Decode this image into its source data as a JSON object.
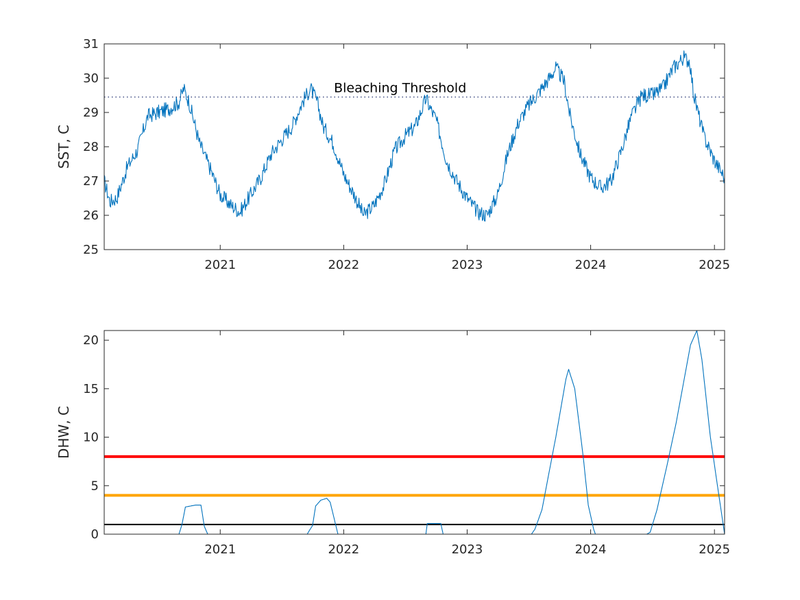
{
  "colors": {
    "series": "#0072BD",
    "red_line": "#FF0000",
    "orange_line": "#FFA500",
    "black_line": "#000000",
    "threshold_line": "#1F2E6E",
    "axis": "#262626"
  },
  "chart_data": [
    {
      "type": "line",
      "title": "",
      "xlabel": "",
      "ylabel": "SST, C",
      "xlim": [
        "2020-01-24",
        "2025-01-31"
      ],
      "ylim": [
        25,
        31
      ],
      "x_ticks": [
        "2021",
        "2022",
        "2023",
        "2024",
        "2025"
      ],
      "y_ticks": [
        "25",
        "26",
        "27",
        "28",
        "29",
        "30",
        "31"
      ],
      "grid": false,
      "annotations": [
        {
          "text": "Bleaching Threshold",
          "at_x": "2022-07-01"
        }
      ],
      "reference_lines": [
        {
          "y": 29.45,
          "style": "dotted"
        }
      ],
      "series": [
        {
          "x": [
            "2020-01-24",
            "2020-02-10",
            "2020-03-01",
            "2020-04-01",
            "2020-05-01",
            "2020-06-01",
            "2020-07-01",
            "2020-08-01",
            "2020-09-01",
            "2020-09-15",
            "2020-10-01",
            "2020-11-01",
            "2020-12-01",
            "2021-01-01",
            "2021-02-01",
            "2021-03-01",
            "2021-04-01",
            "2021-05-01",
            "2021-06-01",
            "2021-07-01",
            "2021-08-01",
            "2021-09-01",
            "2021-09-25",
            "2021-10-15",
            "2021-11-01",
            "2021-12-01",
            "2022-01-01",
            "2022-02-01",
            "2022-03-01",
            "2022-04-01",
            "2022-05-01",
            "2022-06-01",
            "2022-07-01",
            "2022-08-01",
            "2022-09-01",
            "2022-09-15",
            "2022-10-01",
            "2022-11-01",
            "2022-12-01",
            "2023-01-01",
            "2023-02-01",
            "2023-03-01",
            "2023-04-01",
            "2023-05-01",
            "2023-06-01",
            "2023-07-01",
            "2023-08-01",
            "2023-09-01",
            "2023-09-20",
            "2023-10-15",
            "2023-11-01",
            "2023-12-01",
            "2024-01-01",
            "2024-02-01",
            "2024-03-01",
            "2024-04-01",
            "2024-05-01",
            "2024-06-01",
            "2024-07-01",
            "2024-08-01",
            "2024-09-01",
            "2024-10-01",
            "2024-10-20",
            "2024-11-01",
            "2024-12-01",
            "2025-01-01",
            "2025-01-31"
          ],
          "y": [
            27.0,
            26.4,
            26.5,
            27.4,
            27.9,
            28.9,
            29.0,
            29.1,
            29.3,
            29.7,
            29.3,
            28.1,
            27.4,
            26.6,
            26.3,
            26.1,
            26.6,
            27.1,
            27.8,
            28.2,
            28.6,
            29.3,
            29.7,
            29.3,
            28.6,
            28.1,
            27.2,
            26.6,
            26.0,
            26.3,
            26.9,
            27.9,
            28.3,
            28.6,
            29.4,
            29.1,
            28.8,
            27.6,
            27.0,
            26.5,
            26.1,
            26.0,
            26.6,
            27.8,
            28.7,
            29.2,
            29.6,
            30.0,
            30.3,
            29.9,
            28.9,
            27.8,
            27.1,
            26.8,
            27.0,
            27.9,
            28.9,
            29.5,
            29.5,
            29.7,
            30.3,
            30.6,
            30.5,
            29.5,
            28.3,
            27.6,
            27.1
          ]
        }
      ]
    },
    {
      "type": "line",
      "title": "",
      "xlabel": "",
      "ylabel": "DHW, C",
      "xlim": [
        "2020-01-24",
        "2025-01-31"
      ],
      "ylim": [
        0,
        21
      ],
      "x_ticks": [
        "2021",
        "2022",
        "2023",
        "2024",
        "2025"
      ],
      "y_ticks": [
        "0",
        "5",
        "10",
        "15",
        "20"
      ],
      "grid": false,
      "reference_lines": [
        {
          "y": 8,
          "color": "red"
        },
        {
          "y": 4,
          "color": "orange"
        },
        {
          "y": 1,
          "color": "black"
        }
      ],
      "series": [
        {
          "x": [
            "2020-01-24",
            "2020-09-01",
            "2020-09-10",
            "2020-09-20",
            "2020-10-20",
            "2020-11-05",
            "2020-11-15",
            "2020-11-25",
            "2021-09-15",
            "2021-10-01",
            "2021-10-10",
            "2021-10-25",
            "2021-11-12",
            "2021-11-22",
            "2021-12-08",
            "2021-12-15",
            "2022-09-01",
            "2022-09-05",
            "2022-10-15",
            "2022-10-22",
            "2023-07-10",
            "2023-07-20",
            "2023-08-10",
            "2023-09-20",
            "2023-10-20",
            "2023-10-28",
            "2023-11-15",
            "2023-12-10",
            "2023-12-25",
            "2024-01-10",
            "2024-01-15",
            "2024-06-15",
            "2024-06-25",
            "2024-07-15",
            "2024-08-10",
            "2024-09-10",
            "2024-10-01",
            "2024-10-22",
            "2024-11-10",
            "2024-11-25",
            "2024-12-20",
            "2025-01-31"
          ],
          "y": [
            0,
            0,
            1.0,
            2.8,
            3.0,
            3.0,
            0.8,
            0,
            0,
            0.9,
            2.9,
            3.5,
            3.7,
            3.3,
            1.0,
            0,
            0,
            1.1,
            1.1,
            0,
            0,
            0.5,
            2.5,
            10.0,
            16.0,
            17.0,
            15.0,
            8.0,
            3.0,
            0.5,
            0,
            0,
            0.2,
            2.5,
            6.5,
            11.5,
            15.5,
            19.5,
            21.0,
            18.0,
            10.0,
            0
          ]
        }
      ]
    }
  ]
}
